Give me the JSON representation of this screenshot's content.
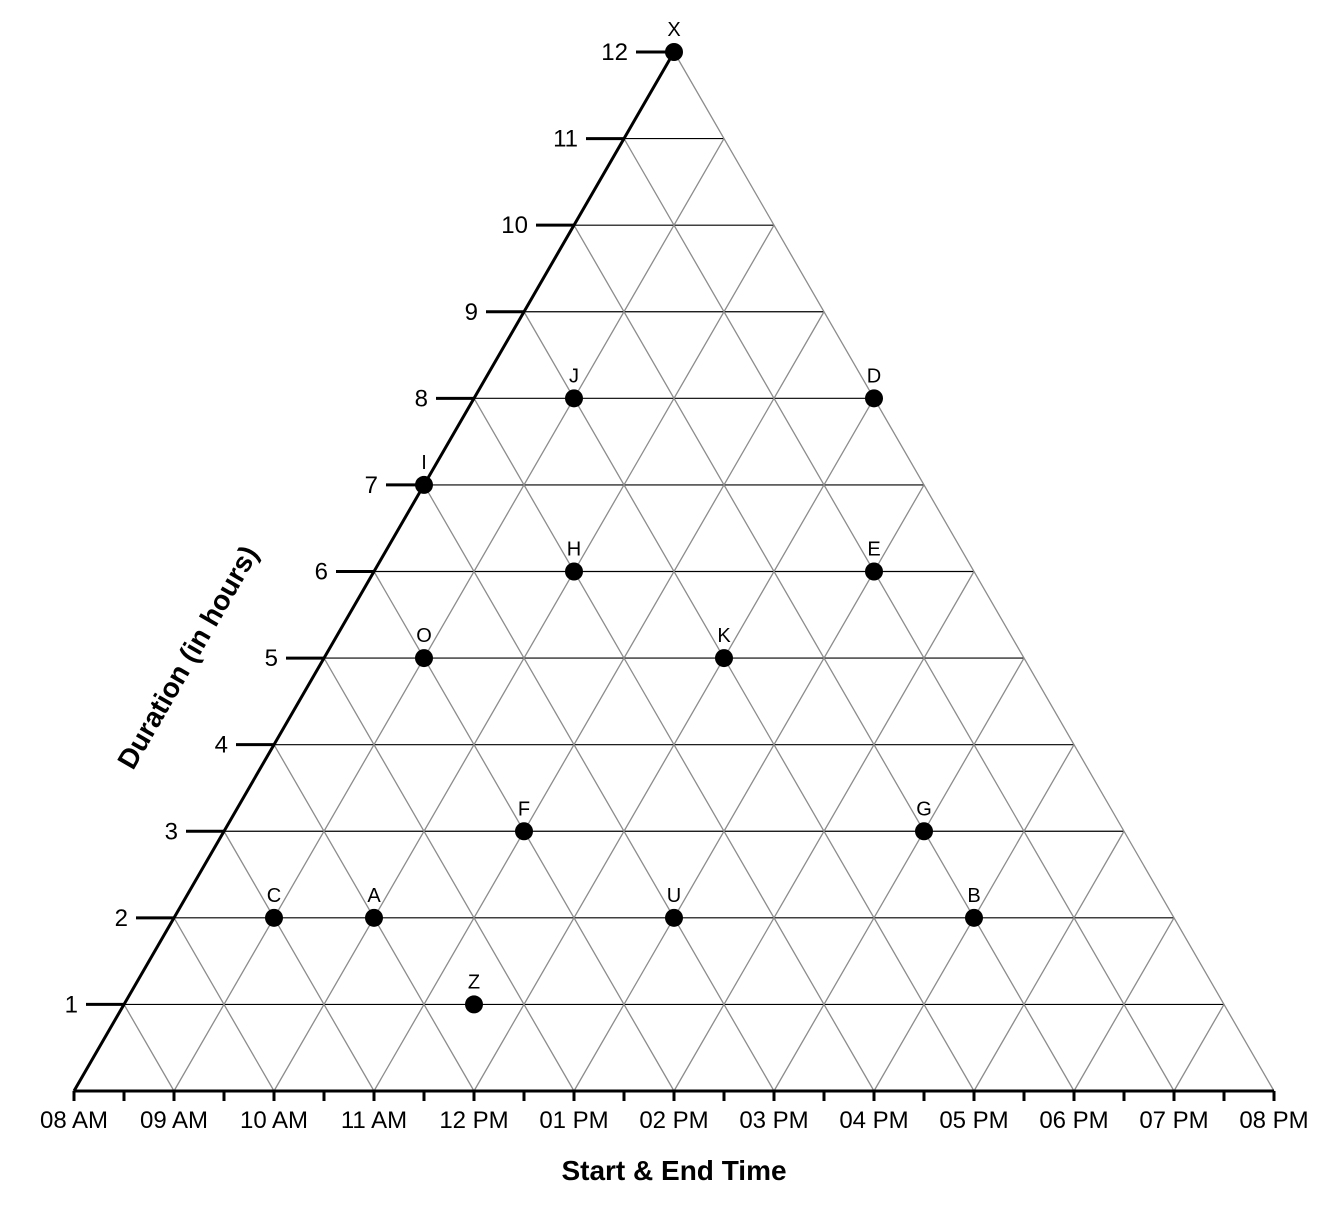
{
  "chart_data": {
    "type": "scatter",
    "title": "",
    "xlabel": "Start & End Time",
    "ylabel": "Duration (in hours)",
    "x_ticks": [
      "08 AM",
      "09 AM",
      "10 AM",
      "11 AM",
      "12 PM",
      "01 PM",
      "02 PM",
      "03 PM",
      "04 PM",
      "05 PM",
      "06 PM",
      "07 PM",
      "08 PM"
    ],
    "y_ticks": [
      "1",
      "2",
      "3",
      "4",
      "5",
      "6",
      "7",
      "8",
      "9",
      "10",
      "11",
      "12"
    ],
    "x_range_hours": [
      8,
      20
    ],
    "y_range": [
      0,
      12
    ],
    "points": [
      {
        "label": "X",
        "start": 8,
        "end": 20
      },
      {
        "label": "J",
        "start": 9,
        "end": 17
      },
      {
        "label": "D",
        "start": 12,
        "end": 20
      },
      {
        "label": "I",
        "start": 8,
        "end": 15
      },
      {
        "label": "H",
        "start": 10,
        "end": 16
      },
      {
        "label": "E",
        "start": 13,
        "end": 19
      },
      {
        "label": "O",
        "start": 9,
        "end": 14
      },
      {
        "label": "K",
        "start": 12,
        "end": 17
      },
      {
        "label": "F",
        "start": 11,
        "end": 14
      },
      {
        "label": "G",
        "start": 15,
        "end": 18
      },
      {
        "label": "C",
        "start": 9,
        "end": 11
      },
      {
        "label": "A",
        "start": 10,
        "end": 12
      },
      {
        "label": "U",
        "start": 13,
        "end": 15
      },
      {
        "label": "B",
        "start": 16,
        "end": 18
      },
      {
        "label": "Z",
        "start": 11.5,
        "end": 12.5
      }
    ]
  }
}
